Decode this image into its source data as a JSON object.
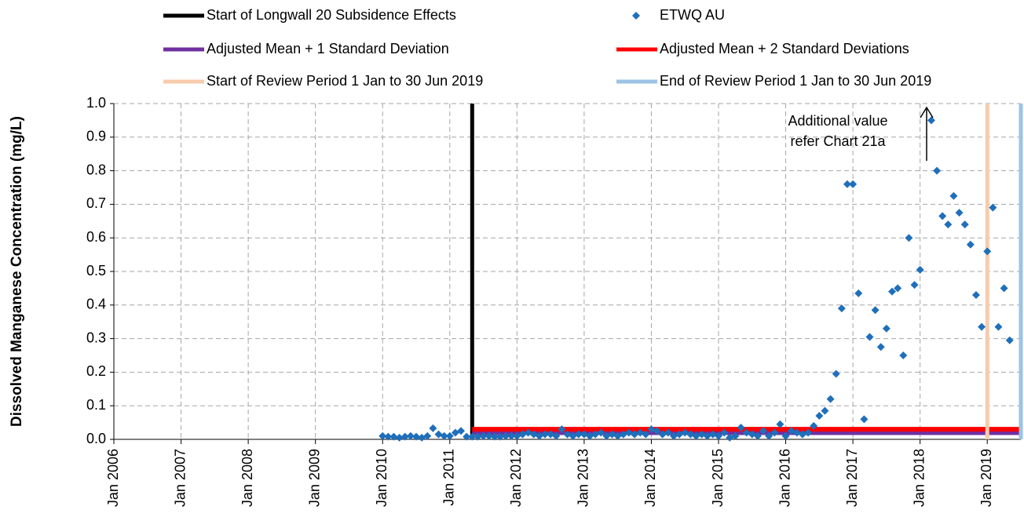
{
  "chart_data": {
    "type": "scatter",
    "y_label": "Dissolved Manganese Concentration (mg/L)",
    "xlim": [
      "2006-01",
      "2019-07"
    ],
    "xticks": [
      {
        "value": "2006-01",
        "label": "Jan 2006"
      },
      {
        "value": "2007-01",
        "label": "Jan 2007"
      },
      {
        "value": "2008-01",
        "label": "Jan 2008"
      },
      {
        "value": "2009-01",
        "label": "Jan 2009"
      },
      {
        "value": "2010-01",
        "label": "Jan 2010"
      },
      {
        "value": "2011-01",
        "label": "Jan 2011"
      },
      {
        "value": "2012-01",
        "label": "Jan 2012"
      },
      {
        "value": "2013-01",
        "label": "Jan 2013"
      },
      {
        "value": "2014-01",
        "label": "Jan 2014"
      },
      {
        "value": "2015-01",
        "label": "Jan 2015"
      },
      {
        "value": "2016-01",
        "label": "Jan 2016"
      },
      {
        "value": "2017-01",
        "label": "Jan 2017"
      },
      {
        "value": "2018-01",
        "label": "Jan 2018"
      },
      {
        "value": "2019-01",
        "label": "Jan 2019"
      }
    ],
    "ylim": [
      0,
      1
    ],
    "yticks": [
      {
        "value": 0,
        "label": "0.0"
      },
      0.1,
      0.2,
      0.3,
      0.4,
      0.5,
      0.6,
      0.7,
      0.8,
      0.9,
      {
        "value": 1,
        "label": "1.0"
      }
    ],
    "grid": true,
    "series": [
      {
        "name": "ETWQ AU",
        "color": "#1f6fba",
        "marker": "diamond",
        "x": [
          "2010-01",
          "2010-02",
          "2010-03",
          "2010-04",
          "2010-05",
          "2010-06",
          "2010-07",
          "2010-08",
          "2010-09",
          "2010-10",
          "2010-11",
          "2010-12",
          "2011-01",
          "2011-02",
          "2011-03",
          "2011-04",
          "2011-05",
          "2011-06",
          "2011-07",
          "2011-08",
          "2011-09",
          "2011-10",
          "2011-11",
          "2011-12",
          "2012-01",
          "2012-02",
          "2012-03",
          "2012-04",
          "2012-05",
          "2012-06",
          "2012-07",
          "2012-08",
          "2012-09",
          "2012-10",
          "2012-11",
          "2012-12",
          "2013-01",
          "2013-02",
          "2013-03",
          "2013-04",
          "2013-05",
          "2013-06",
          "2013-07",
          "2013-08",
          "2013-09",
          "2013-10",
          "2013-11",
          "2013-12",
          "2014-01",
          "2014-02",
          "2014-03",
          "2014-04",
          "2014-05",
          "2014-06",
          "2014-07",
          "2014-08",
          "2014-09",
          "2014-10",
          "2014-11",
          "2014-12",
          "2015-01",
          "2015-02",
          "2015-03",
          "2015-04",
          "2015-05",
          "2015-06",
          "2015-07",
          "2015-08",
          "2015-09",
          "2015-10",
          "2015-11",
          "2015-12",
          "2016-01",
          "2016-02",
          "2016-03",
          "2016-04",
          "2016-05",
          "2016-06",
          "2016-07",
          "2016-08",
          "2016-09",
          "2016-10",
          "2016-11",
          "2016-12",
          "2017-01",
          "2017-02",
          "2017-03",
          "2017-04",
          "2017-05",
          "2017-06",
          "2017-07",
          "2017-08",
          "2017-09",
          "2017-10",
          "2017-11",
          "2017-12",
          "2018-01",
          "2018-03",
          "2018-04",
          "2018-05",
          "2018-06",
          "2018-07",
          "2018-08",
          "2018-09",
          "2018-10",
          "2018-11",
          "2018-12",
          "2019-01",
          "2019-02",
          "2019-03",
          "2019-04",
          "2019-05"
        ],
        "values": [
          0.01,
          0.008,
          0.008,
          0.005,
          0.008,
          0.01,
          0.008,
          0.005,
          0.01,
          0.033,
          0.015,
          0.01,
          0.01,
          0.02,
          0.025,
          0.008,
          0.008,
          0.008,
          0.01,
          0.01,
          0.008,
          0.008,
          0.01,
          0.01,
          0.01,
          0.015,
          0.02,
          0.015,
          0.01,
          0.015,
          0.015,
          0.01,
          0.03,
          0.015,
          0.01,
          0.015,
          0.015,
          0.01,
          0.015,
          0.02,
          0.01,
          0.015,
          0.01,
          0.015,
          0.02,
          0.015,
          0.02,
          0.015,
          0.03,
          0.025,
          0.015,
          0.02,
          0.01,
          0.015,
          0.02,
          0.015,
          0.01,
          0.015,
          0.01,
          0.015,
          0.01,
          0.02,
          0.005,
          0.01,
          0.035,
          0.02,
          0.015,
          0.01,
          0.025,
          0.01,
          0.02,
          0.045,
          0.01,
          0.025,
          0.02,
          0.015,
          0.02,
          0.04,
          0.07,
          0.085,
          0.12,
          0.195,
          0.39,
          0.76,
          0.76,
          0.435,
          0.06,
          0.305,
          0.385,
          0.275,
          0.33,
          0.44,
          0.45,
          0.25,
          0.6,
          0.46,
          0.505,
          0.95,
          0.8,
          0.665,
          0.64,
          0.725,
          0.675,
          0.64,
          0.58,
          0.43,
          0.335,
          0.56,
          0.69,
          0.335,
          0.45,
          0.295
        ]
      }
    ],
    "reference_lines": [
      {
        "name": "Start of Longwall 20 Subsidence Effects",
        "color": "#000000",
        "orientation": "vertical",
        "x": "2011-05"
      },
      {
        "name": "Adjusted Mean + 1 Standard Deviation",
        "color": "#7030a0",
        "orientation": "horizontal",
        "value": 0.02,
        "x": [
          "2011-05",
          "2019-07"
        ]
      },
      {
        "name": "Adjusted Mean + 2 Standard Deviations",
        "color": "#ff0000",
        "orientation": "horizontal",
        "value": 0.03,
        "x": [
          "2011-05",
          "2019-07"
        ]
      },
      {
        "name": "Start of Review Period 1 Jan to 30 Jun 2019",
        "color": "#f8cbad",
        "orientation": "vertical",
        "x": "2019-01"
      },
      {
        "name": "End of Review Period 1 Jan to 30 Jun 2019",
        "color": "#9dc3e6",
        "orientation": "vertical",
        "x": "2019-07"
      }
    ],
    "annotation": [
      "Additional value",
      "refer Chart 21a"
    ]
  }
}
